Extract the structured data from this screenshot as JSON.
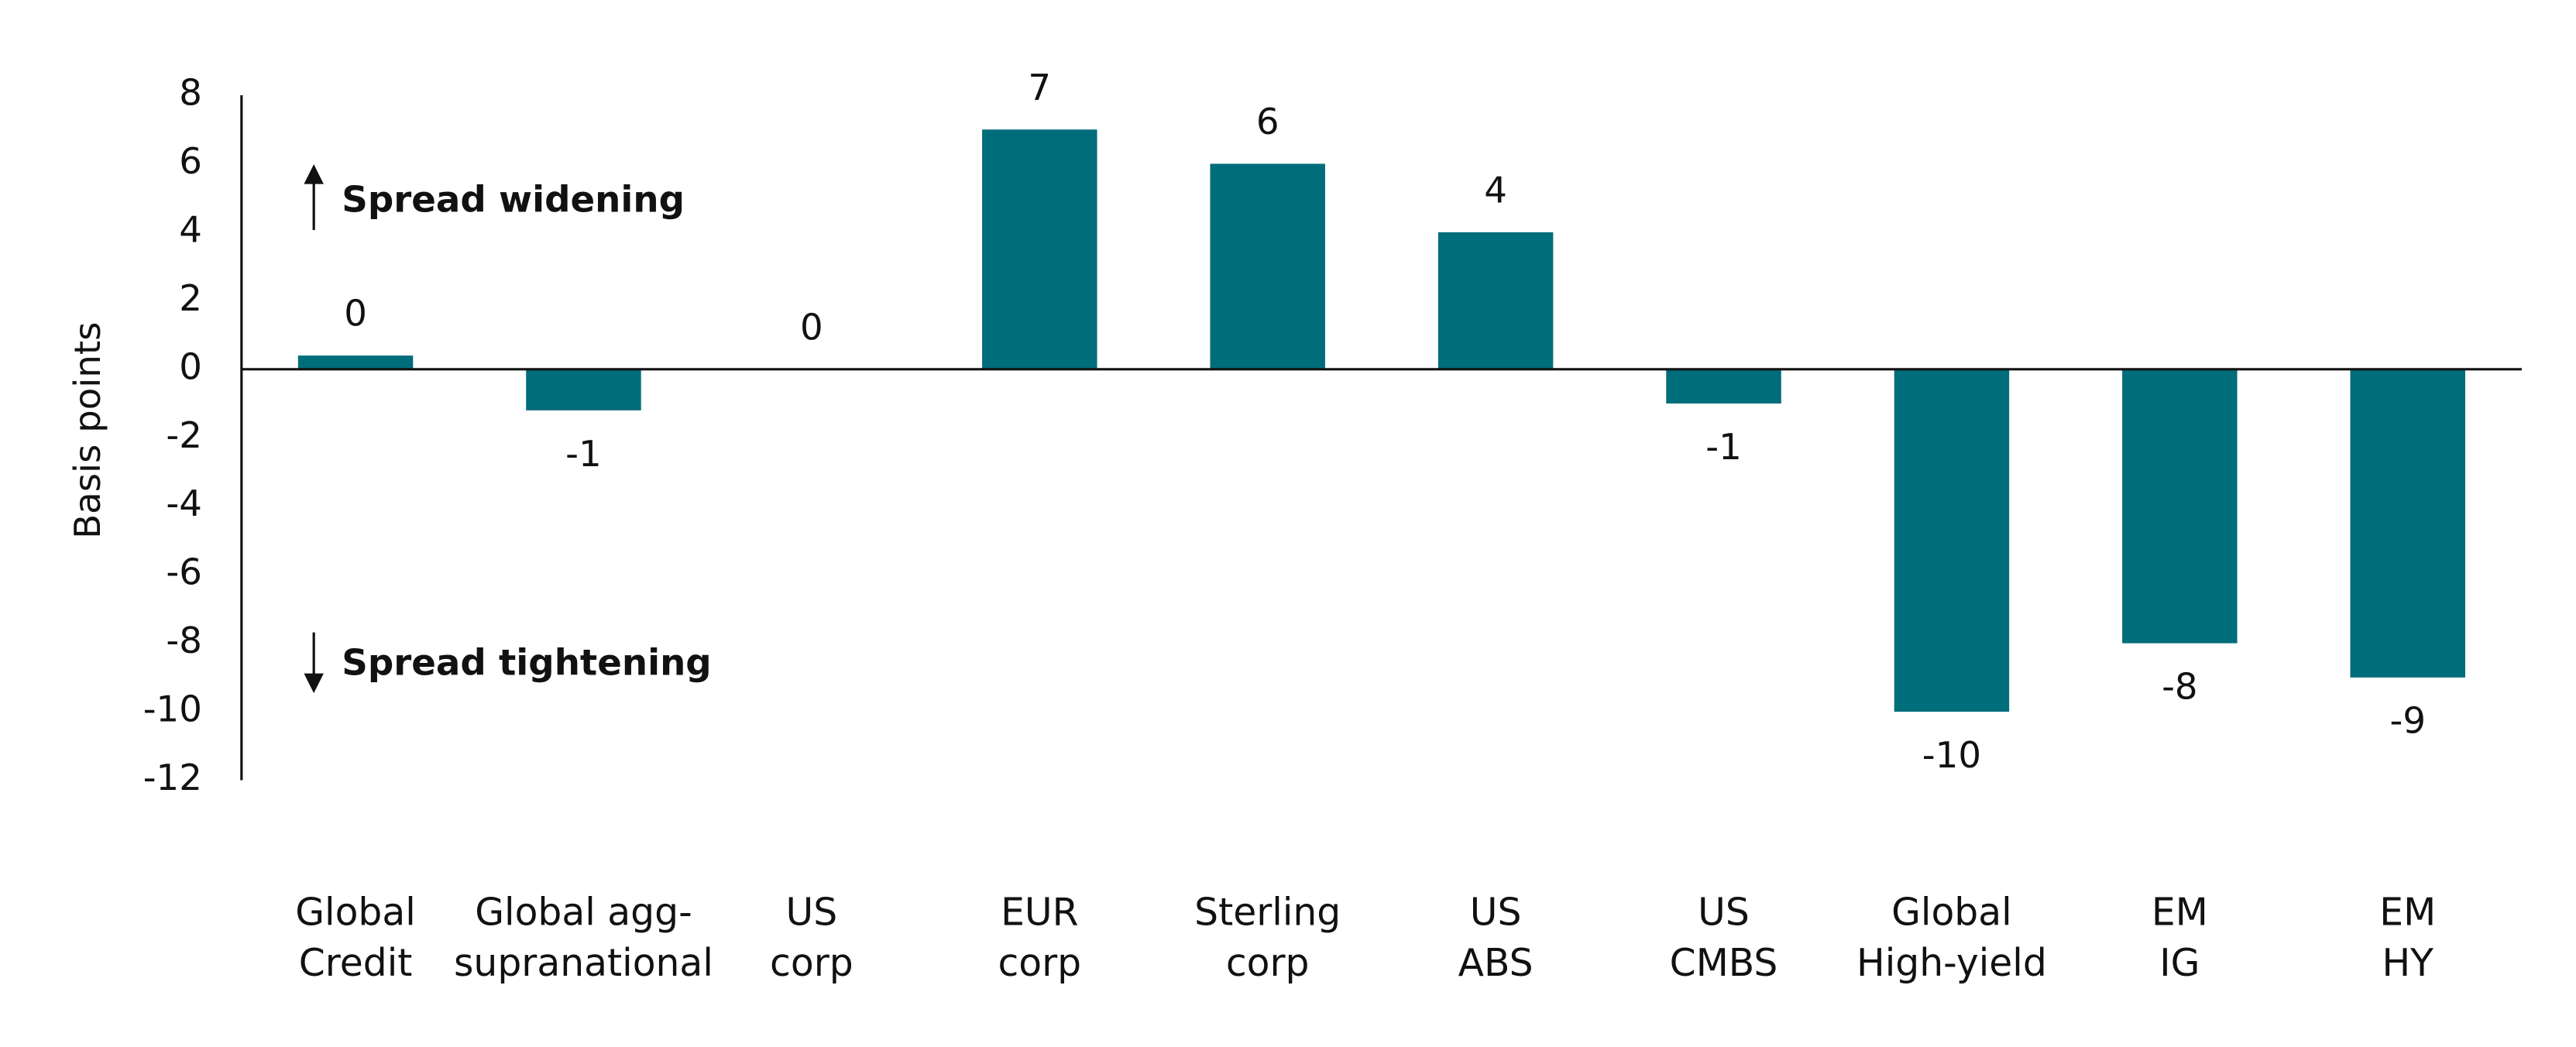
{
  "chart_data": {
    "type": "bar",
    "ylabel": "Basis points",
    "categories": [
      [
        "Global",
        "Credit"
      ],
      [
        "Global agg-",
        "supranational"
      ],
      [
        "US",
        "corp"
      ],
      [
        "EUR",
        "corp"
      ],
      [
        "Sterling",
        "corp"
      ],
      [
        "US",
        "ABS"
      ],
      [
        "US",
        "CMBS"
      ],
      [
        "Global",
        "High-yield"
      ],
      [
        "EM",
        "IG"
      ],
      [
        "EM",
        "HY"
      ]
    ],
    "values": [
      0.4,
      -1.2,
      0,
      7,
      6,
      4,
      -1,
      -10,
      -8,
      -9
    ],
    "value_labels": [
      "0",
      "-1",
      "0",
      "7",
      "6",
      "4",
      "-1",
      "-10",
      "-8",
      "-9"
    ],
    "color": "#006d7a",
    "ylim": [
      -12,
      8
    ],
    "yticks": [
      -12,
      -10,
      -8,
      -6,
      -4,
      -2,
      0,
      2,
      4,
      6,
      8
    ],
    "grid": false,
    "annotations": [
      "Spread widening",
      "Spread tightening"
    ]
  }
}
